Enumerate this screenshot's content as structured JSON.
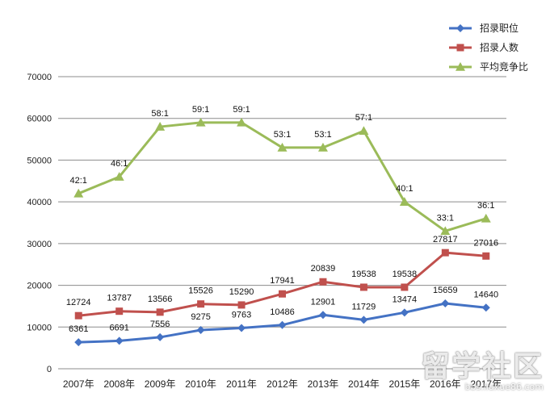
{
  "chart_data": {
    "type": "line",
    "categories": [
      "2007年",
      "2008年",
      "2009年",
      "2010年",
      "2011年",
      "2012年",
      "2013年",
      "2014年",
      "2015年",
      "2016年",
      "2017年"
    ],
    "ylim": [
      0,
      70000
    ],
    "yticks": [
      0,
      10000,
      20000,
      30000,
      40000,
      50000,
      60000,
      70000
    ],
    "grid": true,
    "legend_position": "top-right",
    "series": [
      {
        "name": "招录职位",
        "color": "#4472C4",
        "marker": "diamond",
        "values": [
          6361,
          6691,
          7556,
          9275,
          9763,
          10486,
          12901,
          11729,
          13474,
          15659,
          14640
        ],
        "labels": [
          "6361",
          "6691",
          "7556",
          "9275",
          "9763",
          "10486",
          "12901",
          "11729",
          "13474",
          "15659",
          "14640"
        ]
      },
      {
        "name": "招录人数",
        "color": "#C0504D",
        "marker": "square",
        "values": [
          12724,
          13787,
          13566,
          15526,
          15290,
          17941,
          20839,
          19538,
          19538,
          27817,
          27016
        ],
        "labels": [
          "12724",
          "13787",
          "13566",
          "15526",
          "15290",
          "17941",
          "20839",
          "19538",
          "19538",
          "27817",
          "27016"
        ]
      },
      {
        "name": "平均竞争比",
        "color": "#9BBB59",
        "marker": "triangle",
        "values": [
          42000,
          46000,
          58000,
          59000,
          59000,
          53000,
          53000,
          57000,
          40000,
          33000,
          36000
        ],
        "labels": [
          "42:1",
          "46:1",
          "58:1",
          "59:1",
          "59:1",
          "53:1",
          "53:1",
          "57:1",
          "40:1",
          "33:1",
          "36:1"
        ]
      }
    ]
  },
  "watermark": {
    "text": "留学社区",
    "url": "bbs.liuxue86.com"
  }
}
